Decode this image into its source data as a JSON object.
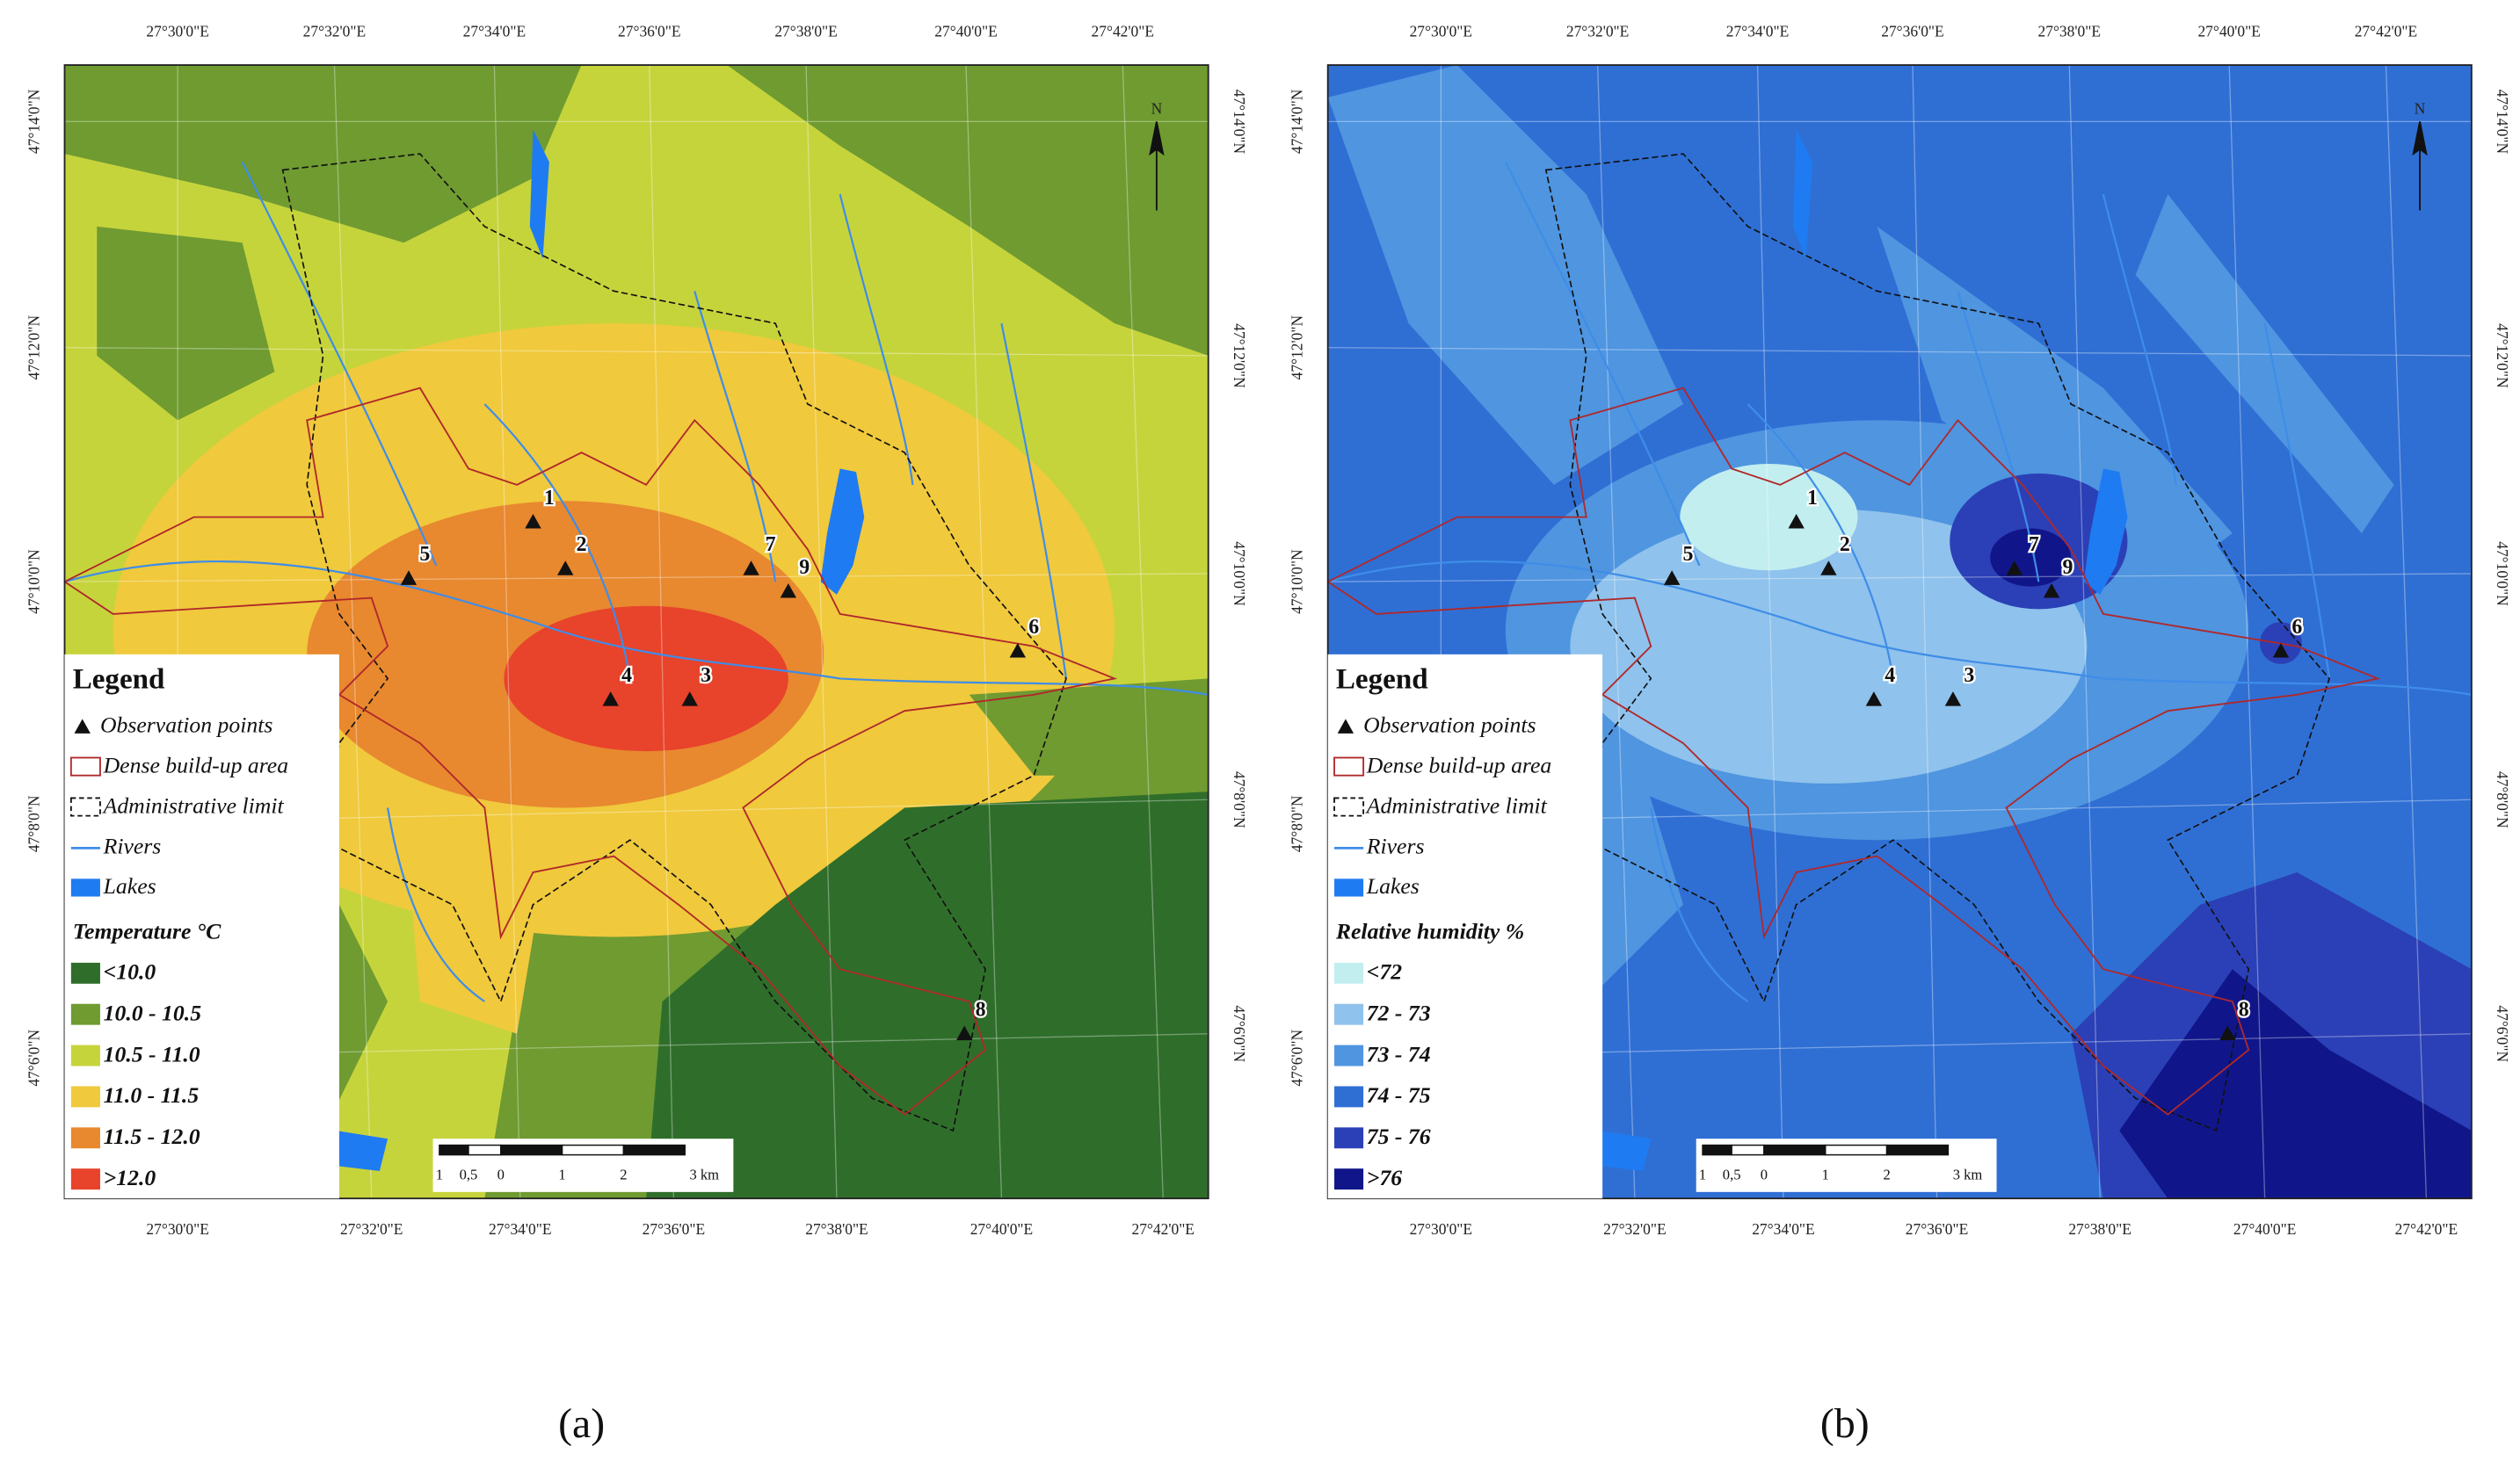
{
  "figure": {
    "panels": [
      {
        "caption": "(a)",
        "top_labels": [
          "27°30'0\"E",
          "27°32'0\"E",
          "27°34'0\"E",
          "27°36'0\"E",
          "27°38'0\"E",
          "27°40'0\"E",
          "27°42'0\"E"
        ],
        "bottom_labels": [
          "27°30'0\"E",
          "27°32'0\"E",
          "27°34'0\"E",
          "27°36'0\"E",
          "27°38'0\"E",
          "27°40'0\"E",
          "27°42'0\"E"
        ],
        "left_labels": [
          "47°14'0\"N",
          "47°12'0\"N",
          "47°10'0\"N",
          "47°8'0\"N",
          "47°6'0\"N"
        ],
        "right_labels": [
          "47°14'0\"N",
          "47°12'0\"N",
          "47°10'0\"N",
          "47°8'0\"N",
          "47°6'0\"N"
        ],
        "north": "N",
        "legend": {
          "title": "Legend",
          "items": [
            "Observation points",
            "Dense build-up area",
            "Administrative limit",
            "Rivers",
            "Lakes"
          ],
          "scale_title": "Temperature °C",
          "classes": [
            {
              "label": "<10.0",
              "color": "#2f6e2a"
            },
            {
              "label": "10.0 - 10.5",
              "color": "#6f9b31"
            },
            {
              "label": "10.5 - 11.0",
              "color": "#c6d43c"
            },
            {
              "label": "11.0 - 11.5",
              "color": "#f0c93c"
            },
            {
              "label": "11.5 - 12.0",
              "color": "#e8882f"
            },
            {
              "label": ">12.0",
              "color": "#e8432b"
            }
          ]
        },
        "points": [
          "1",
          "2",
          "3",
          "4",
          "5",
          "6",
          "7",
          "8",
          "9"
        ],
        "scale_bar": [
          "1",
          "0,5",
          "0",
          "1",
          "2",
          "3 km"
        ]
      },
      {
        "caption": "(b)",
        "top_labels": [
          "27°30'0\"E",
          "27°32'0\"E",
          "27°34'0\"E",
          "27°36'0\"E",
          "27°38'0\"E",
          "27°40'0\"E",
          "27°42'0\"E"
        ],
        "bottom_labels": [
          "27°30'0\"E",
          "27°32'0\"E",
          "27°34'0\"E",
          "27°36'0\"E",
          "27°38'0\"E",
          "27°40'0\"E",
          "27°42'0\"E"
        ],
        "left_labels": [
          "47°14'0\"N",
          "47°12'0\"N",
          "47°10'0\"N",
          "47°8'0\"N",
          "47°6'0\"N"
        ],
        "right_labels": [
          "47°14'0\"N",
          "47°12'0\"N",
          "47°10'0\"N",
          "47°8'0\"N",
          "47°6'0\"N"
        ],
        "north": "N",
        "legend": {
          "title": "Legend",
          "items": [
            "Observation points",
            "Dense build-up area",
            "Administrative limit",
            "Rivers",
            "Lakes"
          ],
          "scale_title": "Relative humidity %",
          "classes": [
            {
              "label": "<72",
              "color": "#c2eef0"
            },
            {
              "label": "72 - 73",
              "color": "#8fc2ec"
            },
            {
              "label": "73 - 74",
              "color": "#4f95e0"
            },
            {
              "label": "74 - 75",
              "color": "#2f6fd4"
            },
            {
              "label": "75 - 76",
              "color": "#2b40b6"
            },
            {
              "label": ">76",
              "color": "#10168a"
            }
          ]
        },
        "points": [
          "1",
          "2",
          "3",
          "4",
          "5",
          "6",
          "7",
          "8",
          "9"
        ],
        "scale_bar": [
          "1",
          "0,5",
          "0",
          "1",
          "2",
          "3 km"
        ]
      }
    ]
  }
}
